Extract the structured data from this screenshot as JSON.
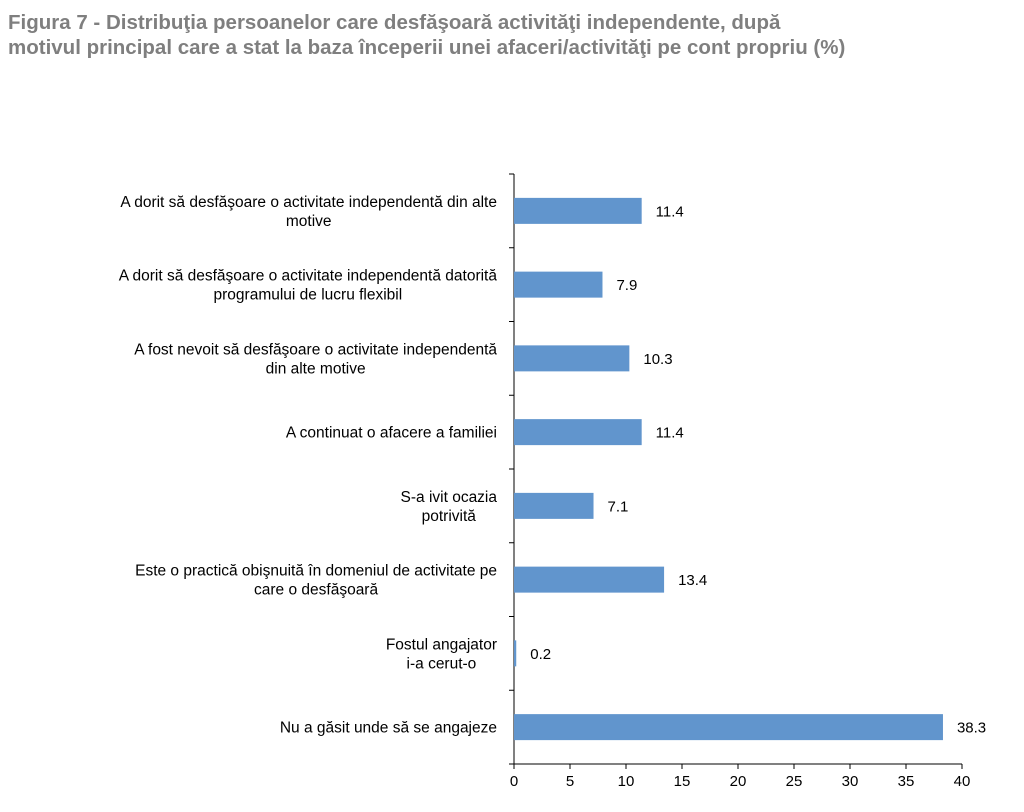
{
  "title_lines": [
    "Figura 7 - Distribuţia persoanelor care desfăşoară activităţi independente, după",
    "motivul principal care a stat la baza începerii unei afaceri/activităţi pe cont propriu (%)"
  ],
  "chart_data": {
    "type": "bar",
    "orientation": "horizontal",
    "categories": [
      [
        "A dorit să desfăşoare o activitate independentă din alte",
        "motive"
      ],
      [
        "A dorit să desfăşoare o activitate independentă datorită",
        "programului de lucru flexibil"
      ],
      [
        "A fost nevoit să  desfăşoare o activitate independentă",
        "din alte motive"
      ],
      [
        "A continuat o afacere a familiei"
      ],
      [
        "S-a ivit ocazia",
        "potrivită"
      ],
      [
        "Este o practică obişnuită în domeniul de activitate pe",
        "care o desfăşoară"
      ],
      [
        "Fostul angajator",
        "i-a cerut-o"
      ],
      [
        "Nu a găsit unde să se angajeze"
      ]
    ],
    "values": [
      11.4,
      7.9,
      10.3,
      11.4,
      7.1,
      13.4,
      0.2,
      38.3
    ],
    "value_labels": [
      "11.4",
      "7.9",
      "10.3",
      "11.4",
      "7.1",
      "13.4",
      "0.2",
      "38.3"
    ],
    "xlim": [
      0,
      40
    ],
    "xticks": [
      "0",
      "5",
      "10",
      "15",
      "20",
      "25",
      "30",
      "35",
      "40"
    ],
    "bar_color": "#6195cd",
    "grid": false,
    "legend": "none"
  }
}
